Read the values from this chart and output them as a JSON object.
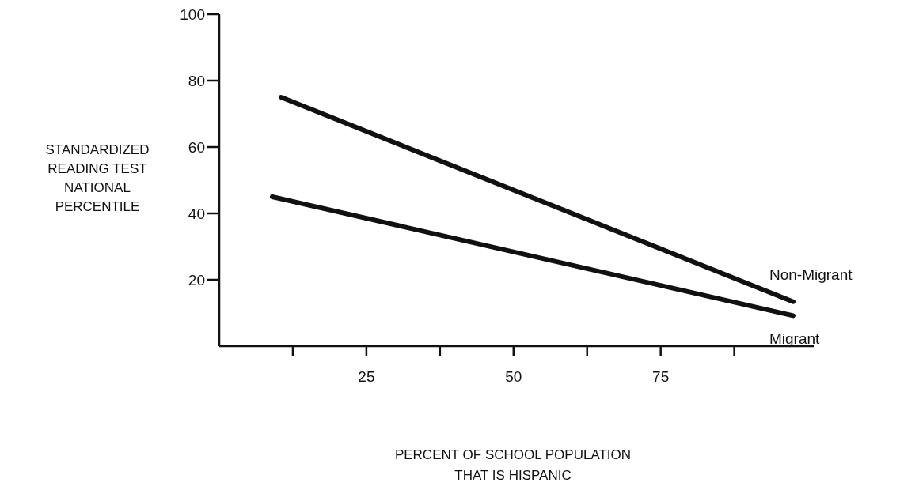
{
  "chart_data": {
    "type": "line",
    "xlabel": "PERCENT OF SCHOOL POPULATION\nTHAT IS HISPANIC",
    "ylabel": "STANDARDIZED\nREADING TEST\nNATIONAL\nPERCENTILE",
    "series": [
      {
        "name": "Non-Migrant",
        "color": "#111111",
        "x": [
          10.5,
          97.5
        ],
        "values": [
          75,
          13.4
        ]
      },
      {
        "name": "Migrant",
        "color": "#111111",
        "x": [
          9,
          97.5
        ],
        "values": [
          45,
          9.2
        ]
      }
    ],
    "xlim": [
      0,
      101
    ],
    "xticks": [
      {
        "value": 12.5,
        "label": null
      },
      25,
      {
        "value": 37.5,
        "label": null
      },
      50,
      {
        "value": 62.5,
        "label": null
      },
      75,
      {
        "value": 87.5,
        "label": null
      }
    ],
    "ylim": [
      0,
      100
    ],
    "yticks": [
      20,
      40,
      60,
      80,
      100
    ],
    "marker": "none",
    "line_style": "solid"
  }
}
